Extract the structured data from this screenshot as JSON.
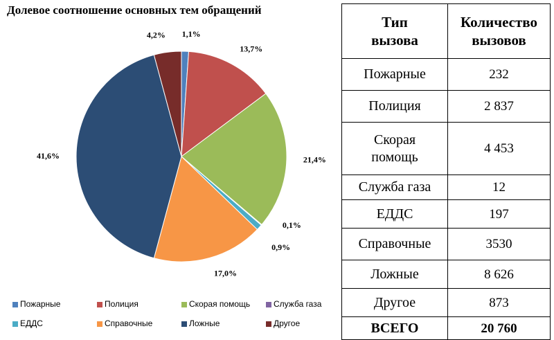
{
  "chart_data": {
    "type": "pie",
    "title": "Долевое соотношение основных тем обращений",
    "categories": [
      "Пожарные",
      "Полиция",
      "Скорая помощь",
      "Служба газа",
      "ЕДДС",
      "Справочные",
      "Ложные",
      "Другое"
    ],
    "values": [
      1.1,
      13.7,
      21.4,
      0.1,
      0.9,
      17.0,
      41.6,
      4.2
    ],
    "value_labels": [
      "1,1%",
      "13,7%",
      "21,4%",
      "0,1%",
      "0,9%",
      "17,0%",
      "41,6%",
      "4,2%"
    ],
    "colors": [
      "#4f81bd",
      "#c0504d",
      "#9bbb59",
      "#8064a2",
      "#4bacc6",
      "#f79646",
      "#2c4d75",
      "#772c2a"
    ],
    "legend": "bottom"
  },
  "table": {
    "header": [
      "Тип\nвызова",
      "Количество\nвызовов"
    ],
    "rows": [
      [
        "Пожарные",
        "232"
      ],
      [
        "Полиция",
        "2 837"
      ],
      [
        "Скорая\nпомощь",
        "4 453"
      ],
      [
        "Служба газа",
        "12"
      ],
      [
        "ЕДДС",
        "197"
      ],
      [
        "Справочные",
        "3530"
      ],
      [
        "Ложные",
        "8 626"
      ],
      [
        "Другое",
        "873"
      ],
      [
        "ВСЕГО",
        "20 760"
      ]
    ]
  }
}
